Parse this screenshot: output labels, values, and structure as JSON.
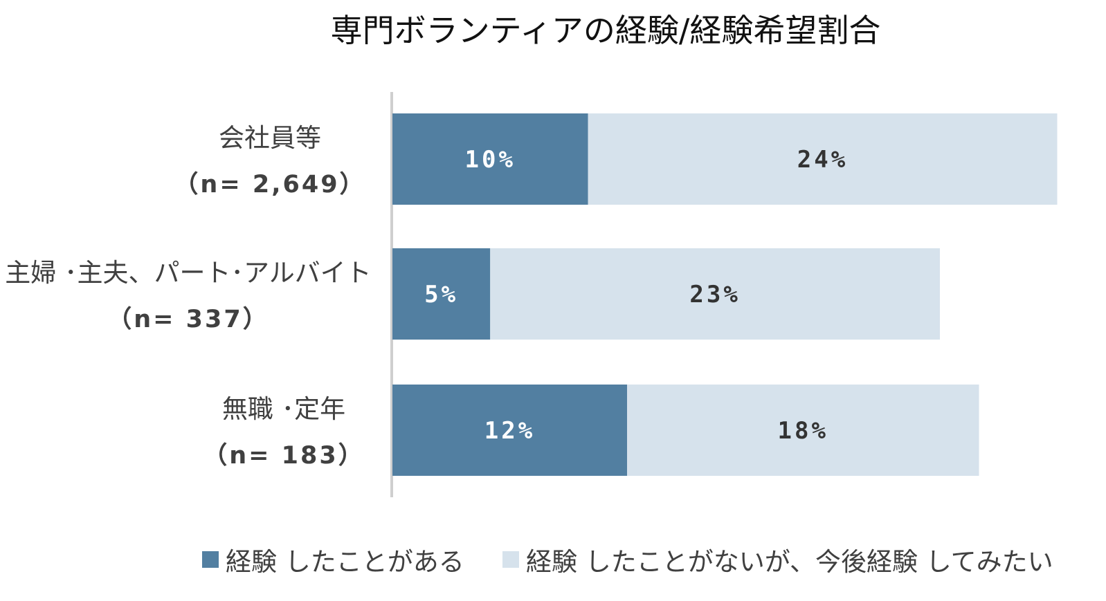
{
  "chart_data": {
    "type": "bar",
    "orientation": "horizontal",
    "stacked": true,
    "title": "専門ボランティアの経験/経験希望割合",
    "categories": [
      {
        "label": "会社員等",
        "n": "（n= 2,649）"
      },
      {
        "label": "主婦 ･主夫、パート･アルバイト",
        "n": "（n= 337）"
      },
      {
        "label": "無職 ･定年",
        "n": "（n= 183）"
      }
    ],
    "series": [
      {
        "name": "経験 したことがある",
        "values": [
          10,
          5,
          12
        ],
        "labels": [
          "10%",
          "5%",
          "12%"
        ],
        "color": "#527fa1",
        "label_color": "#ffffff"
      },
      {
        "name": "経験 したことがないが、今後経験 してみたい",
        "values": [
          24,
          23,
          18
        ],
        "labels": [
          "24%",
          "23%",
          "18%"
        ],
        "color": "#d6e2ec",
        "label_color": "#333333"
      }
    ],
    "xlim": [
      0,
      35
    ],
    "grid": false,
    "legend_position": "bottom"
  }
}
